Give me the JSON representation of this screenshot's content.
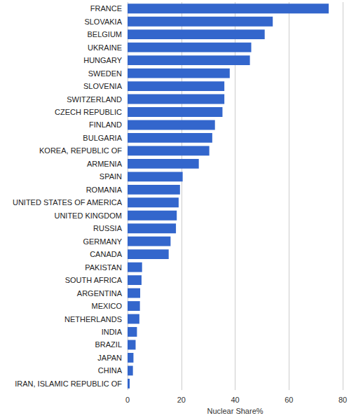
{
  "chart_data": {
    "type": "bar",
    "orientation": "horizontal",
    "x_label": "Nuclear Share%",
    "categories": [
      "FRANCE",
      "SLOVAKIA",
      "BELGIUM",
      "UKRAINE",
      "HUNGARY",
      "SWEDEN",
      "SLOVENIA",
      "SWITZERLAND",
      "CZECH REPUBLIC",
      "FINLAND",
      "BULGARIA",
      "KOREA, REPUBLIC OF",
      "ARMENIA",
      "SPAIN",
      "ROMANIA",
      "UNITED STATES OF AMERICA",
      "UNITED KINGDOM",
      "RUSSIA",
      "GERMANY",
      "CANADA",
      "PAKISTAN",
      "SOUTH AFRICA",
      "ARGENTINA",
      "MEXICO",
      "NETHERLANDS",
      "INDIA",
      "BRAZIL",
      "JAPAN",
      "CHINA",
      "IRAN, ISLAMIC REPUBLIC OF"
    ],
    "values": [
      74.8,
      54,
      51,
      46,
      45.5,
      38,
      36,
      36,
      35.3,
      32.5,
      31.5,
      30.4,
      26.5,
      20.5,
      19.5,
      19,
      18.3,
      18,
      16,
      15.3,
      5.4,
      5.2,
      4.7,
      4.6,
      4.4,
      3.5,
      3,
      2.2,
      2,
      0.8
    ],
    "color": "#3366cc",
    "xlim": [
      0,
      80
    ],
    "xticks": [
      0,
      20,
      40,
      60,
      80
    ],
    "grid": true
  }
}
